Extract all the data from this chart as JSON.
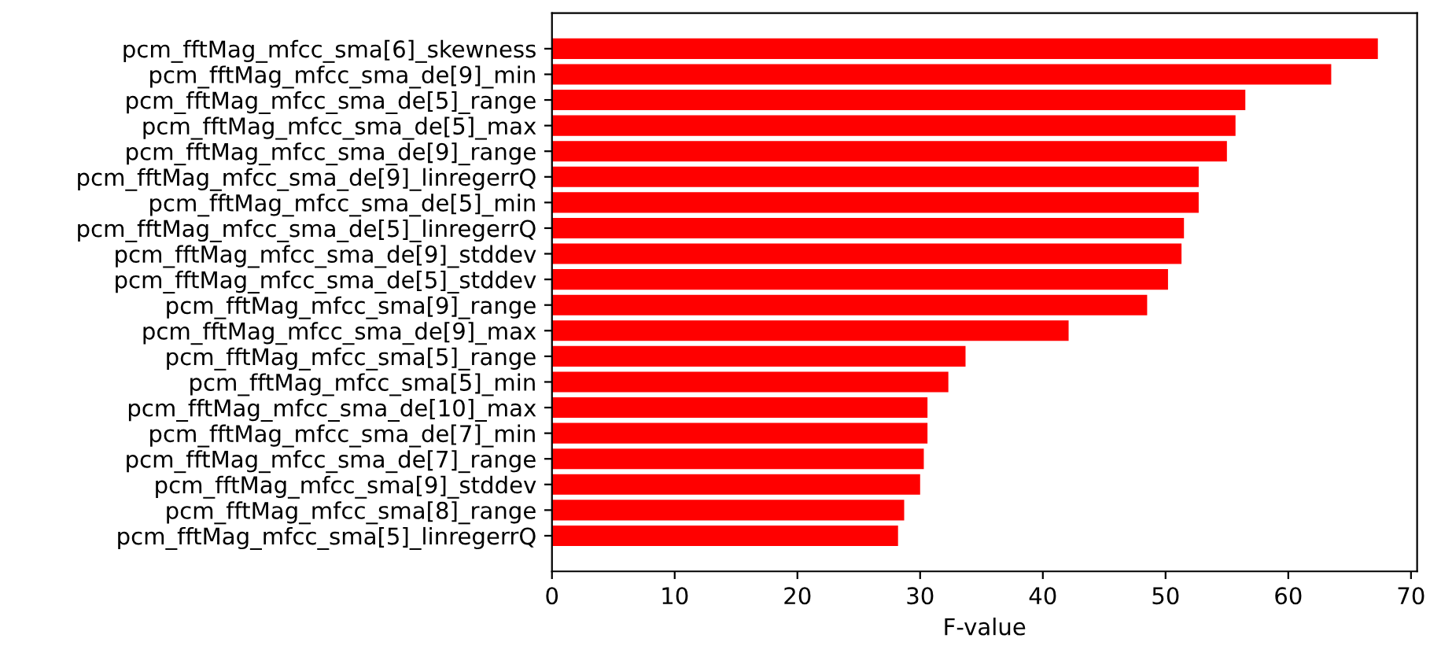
{
  "chart_data": {
    "type": "bar",
    "orientation": "horizontal",
    "xlabel": "F-value",
    "color": "#ff0000",
    "categories": [
      "pcm_fftMag_mfcc_sma[6]_skewness",
      "pcm_fftMag_mfcc_sma_de[9]_min",
      "pcm_fftMag_mfcc_sma_de[5]_range",
      "pcm_fftMag_mfcc_sma_de[5]_max",
      "pcm_fftMag_mfcc_sma_de[9]_range",
      "pcm_fftMag_mfcc_sma_de[9]_linregerrQ",
      "pcm_fftMag_mfcc_sma_de[5]_min",
      "pcm_fftMag_mfcc_sma_de[5]_linregerrQ",
      "pcm_fftMag_mfcc_sma_de[9]_stddev",
      "pcm_fftMag_mfcc_sma_de[5]_stddev",
      "pcm_fftMag_mfcc_sma[9]_range",
      "pcm_fftMag_mfcc_sma_de[9]_max",
      "pcm_fftMag_mfcc_sma[5]_range",
      "pcm_fftMag_mfcc_sma[5]_min",
      "pcm_fftMag_mfcc_sma_de[10]_max",
      "pcm_fftMag_mfcc_sma_de[7]_min",
      "pcm_fftMag_mfcc_sma_de[7]_range",
      "pcm_fftMag_mfcc_sma[9]_stddev",
      "pcm_fftMag_mfcc_sma[8]_range",
      "pcm_fftMag_mfcc_sma[5]_linregerrQ"
    ],
    "values": [
      67.3,
      63.5,
      56.5,
      55.7,
      55.0,
      52.7,
      52.7,
      51.5,
      51.3,
      50.2,
      48.5,
      42.1,
      33.7,
      32.3,
      30.6,
      30.6,
      30.3,
      30.0,
      28.7,
      28.2
    ],
    "xlim": [
      0,
      70.5
    ],
    "xticks": [
      0,
      10,
      20,
      30,
      40,
      50,
      60,
      70
    ],
    "grid": false,
    "legend": false
  }
}
